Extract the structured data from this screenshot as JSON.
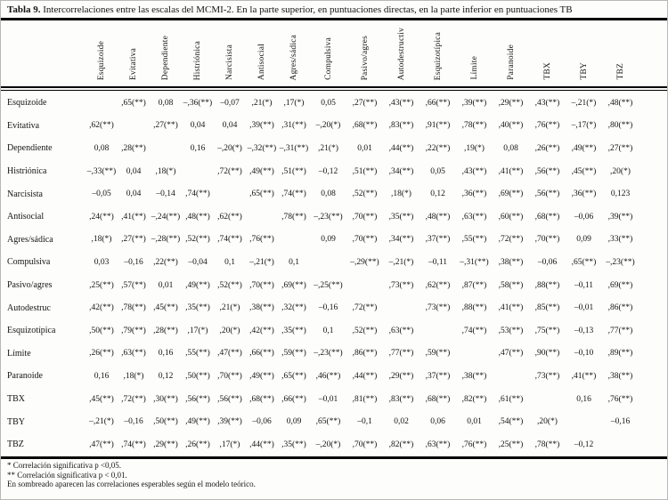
{
  "title": {
    "label": "Tabla 9.",
    "text": " Intercorrelaciones entre las escalas del MCMI-2. En la parte superior, en puntuaciones directas, en la parte inferior en puntuaciones TB"
  },
  "chart_data": {
    "type": "table",
    "columns": [
      "Esquizoide",
      "Evitativa",
      "Dependiente",
      "Histriónica",
      "Narcisista",
      "Antisocial",
      "Agres/sádica",
      "Compulsiva",
      "Pasivo/agres",
      "Autodestructiv",
      "Esquizotípica",
      "Límite",
      "Paranoide",
      "TBX",
      "TBY",
      "TBZ"
    ],
    "rows": [
      {
        "label": "Esquizoide",
        "values": [
          "",
          ",65(**)",
          "0,08",
          "–,36(**)",
          "–0,07",
          ",21(*)",
          ",17(*)",
          "0,05",
          ",27(**)",
          ",43(**)",
          ",66(**)",
          ",39(**)",
          ",29(**)",
          ",43(**)",
          "–,21(*)",
          ",48(**)"
        ]
      },
      {
        "label": "Evitativa",
        "values": [
          ",62(**)",
          "",
          ",27(**)",
          "0,04",
          "0,04",
          ",39(**)",
          ",31(**)",
          "–,20(*)",
          ",68(**)",
          ",83(**)",
          ",91(**)",
          ",78(**)",
          ",40(**)",
          ",76(**)",
          "–,17(*)",
          ",80(**)"
        ]
      },
      {
        "label": "Dependiente",
        "values": [
          "0,08",
          ",28(**)",
          "",
          "0,16",
          "–,20(*)",
          "–,32(**)",
          "–,31(**)",
          ",21(*)",
          "0,01",
          ",44(**)",
          ",22(**)",
          ",19(*)",
          "0,08",
          ",26(**)",
          ",49(**)",
          ",27(**)"
        ]
      },
      {
        "label": "Histriónica",
        "values": [
          "–,33(**)",
          "0,04",
          ",18(*)",
          "",
          ",72(**)",
          ",49(**)",
          ",51(**)",
          "–0,12",
          ",51(**)",
          ",34(**)",
          "0,05",
          ",43(**)",
          ",41(**)",
          ",56(**)",
          ",45(**)",
          ",20(*)"
        ]
      },
      {
        "label": "Narcisista",
        "values": [
          "–0,05",
          "0,04",
          "–0,14",
          ",74(**)",
          "",
          ",65(**)",
          ",74(**)",
          "0,08",
          ",52(**)",
          ",18(*)",
          "0,12",
          ",36(**)",
          ",69(**)",
          ",56(**)",
          ",36(**)",
          "0,123"
        ]
      },
      {
        "label": "Antisocial",
        "values": [
          ",24(**)",
          ",41(**)",
          "–,24(**)",
          ",48(**)",
          ",62(**)",
          "",
          ",78(**)",
          "–,23(**)",
          ",70(**)",
          ",35(**)",
          ",48(**)",
          ",63(**)",
          ",60(**)",
          ",68(**)",
          "–0,06",
          ",39(**)"
        ]
      },
      {
        "label": "Agres/sádica",
        "values": [
          ",18(*)",
          ",27(**)",
          "–,28(**)",
          ",52(**)",
          ",74(**)",
          ",76(**)",
          "",
          "0,09",
          ",70(**)",
          ",34(**)",
          ",37(**)",
          ",55(**)",
          ",72(**)",
          ",70(**)",
          "0,09",
          ",33(**)"
        ]
      },
      {
        "label": "Compulsiva",
        "values": [
          "0,03",
          "–0,16",
          ",22(**)",
          "–0,04",
          "0,1",
          "–,21(*)",
          "0,1",
          "",
          "–,29(**)",
          "–,21(*)",
          "–0,11",
          "–,31(**)",
          ",38(**)",
          "–0,06",
          ",65(**)",
          "–,23(**)"
        ]
      },
      {
        "label": "Pasivo/agres",
        "values": [
          ",25(**)",
          ",57(**)",
          "0,01",
          ",49(**)",
          ",52(**)",
          ",70(**)",
          ",69(**)",
          "–,25(**)",
          "",
          ",73(**)",
          ",62(**)",
          ",87(**)",
          ",58(**)",
          ",88(**)",
          "–0,11",
          ",69(**)"
        ]
      },
      {
        "label": "Autodestruc",
        "values": [
          ",42(**)",
          ",78(**)",
          ",45(**)",
          ",35(**)",
          ",21(*)",
          ",38(**)",
          ",32(**)",
          "–0,16",
          ",72(**)",
          "",
          ",73(**)",
          ",88(**)",
          ",41(**)",
          ",85(**)",
          "–0,01",
          ",86(**)"
        ]
      },
      {
        "label": "Esquizotípica",
        "values": [
          ",50(**)",
          ",79(**)",
          ",28(**)",
          ",17(*)",
          ",20(*)",
          ",42(**)",
          ",35(**)",
          "0,1",
          ",52(**)",
          ",63(**)",
          "",
          ",74(**)",
          ",53(**)",
          ",75(**)",
          "–0,13",
          ",77(**)"
        ]
      },
      {
        "label": "Límite",
        "values": [
          ",26(**)",
          ",63(**)",
          "0,16",
          ",55(**)",
          ",47(**)",
          ",66(**)",
          ",59(**)",
          "–,23(**)",
          ",86(**)",
          ",77(**)",
          ",59(**)",
          "",
          ",47(**)",
          ",90(**)",
          "–0,10",
          ",89(**)"
        ]
      },
      {
        "label": "Paranoide",
        "values": [
          "0,16",
          ",18(*)",
          "0,12",
          ",50(**)",
          ",70(**)",
          ",49(**)",
          ",65(**)",
          ",46(**)",
          ",44(**)",
          ",29(**)",
          ",37(**)",
          ",38(**)",
          "",
          ",73(**)",
          ",41(**)",
          ",38(**)"
        ]
      },
      {
        "label": "TBX",
        "values": [
          ",45(**)",
          ",72(**)",
          ",30(**)",
          ",56(**)",
          ",56(**)",
          ",68(**)",
          ",66(**)",
          "–0,01",
          ",81(**)",
          ",83(**)",
          ",68(**)",
          ",82(**)",
          ",61(**)",
          "",
          "0,16",
          ",76(**)"
        ]
      },
      {
        "label": "TBY",
        "values": [
          "–,21(*)",
          "–0,16",
          ",50(**)",
          ",49(**)",
          ",39(**)",
          "–0,06",
          "0,09",
          ",65(**)",
          "–0,1",
          "0,02",
          "0,06",
          "0,01",
          ",54(**)",
          ",20(*)",
          "",
          "–0,16"
        ]
      },
      {
        "label": "TBZ",
        "values": [
          ",47(**)",
          ",74(**)",
          ",29(**)",
          ",26(**)",
          ",17(*)",
          ",44(**)",
          ",35(**)",
          "–,20(*)",
          ",70(**)",
          ",82(**)",
          ",63(**)",
          ",76(**)",
          ",25(**)",
          ",78(**)",
          "–0,12",
          ""
        ]
      }
    ]
  },
  "footnotes": [
    "* Correlación significativa p <0,05.",
    "** Correlación significativa p < 0,01.",
    "En sombreado aparecen las correlaciones esperables según el modelo teórico."
  ]
}
